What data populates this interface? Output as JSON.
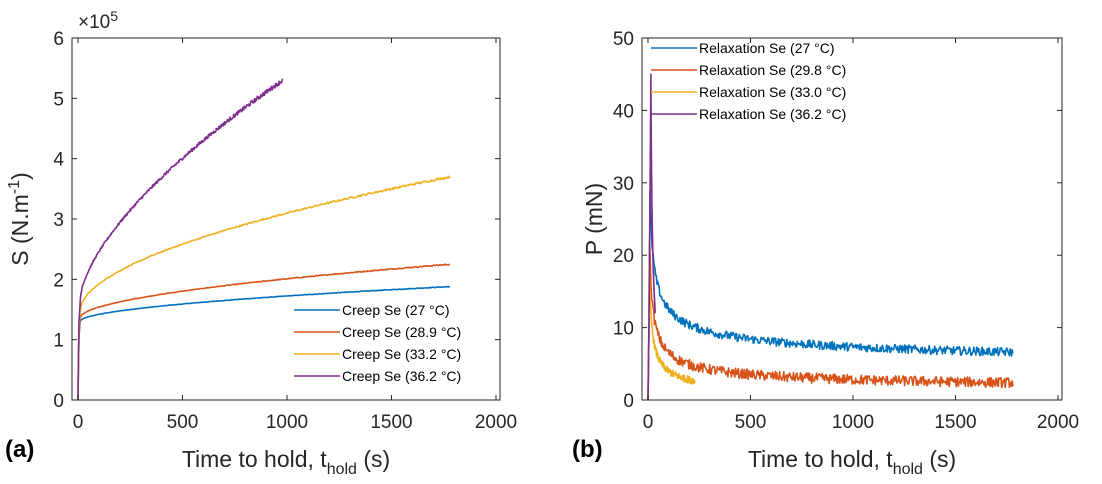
{
  "chart_data": [
    {
      "type": "line",
      "panel_label": "(a)",
      "xlabel_main": "Time to hold, t",
      "xlabel_sub": "hold",
      "xlabel_unit": " (s)",
      "ylabel_main": "S (N.m",
      "ylabel_sup": "-1",
      "ylabel_end": ")",
      "exponent_base": "×10",
      "exponent_power": "5",
      "xlim": [
        0,
        2000
      ],
      "ylim": [
        0,
        6
      ],
      "xticks": [
        "0",
        "500",
        "1000",
        "1500",
        "2000"
      ],
      "yticks": [
        "0",
        "1",
        "2",
        "3",
        "4",
        "5",
        "6"
      ],
      "grid": false,
      "legend_position": "bottom-right",
      "series": [
        {
          "name": "Creep Se (27 °C)",
          "color": "#0072BD",
          "t_end": 1780,
          "y_end": 1.88,
          "a": 0.15,
          "x0": 12,
          "p": 0.55,
          "noise": 0.004,
          "x": [
            0,
            5,
            10,
            12,
            100,
            500,
            1000,
            1500,
            1780
          ],
          "y": [
            0,
            1.05,
            1.3,
            1.31,
            1.44,
            1.65,
            1.76,
            1.84,
            1.88
          ]
        },
        {
          "name": "Creep Se (28.9 °C)",
          "color": "#D95319",
          "t_end": 1780,
          "y_end": 2.25,
          "a": 0.2,
          "x0": 12,
          "p": 0.55,
          "noise": 0.006,
          "x": [
            0,
            5,
            10,
            12,
            100,
            500,
            1000,
            1500,
            1780
          ],
          "y": [
            0,
            1.1,
            1.35,
            1.37,
            1.6,
            1.93,
            2.08,
            2.19,
            2.25
          ]
        },
        {
          "name": "Creep Se (33.2 °C)",
          "color": "#EDB120",
          "t_end": 1780,
          "y_end": 3.7,
          "a": 0.26,
          "x0": 12,
          "p": 0.55,
          "noise": 0.012,
          "x": [
            0,
            5,
            10,
            12,
            100,
            500,
            1000,
            1500,
            1780
          ],
          "y": [
            0,
            1.2,
            1.45,
            1.5,
            2.2,
            2.7,
            3.1,
            3.45,
            3.7
          ]
        },
        {
          "name": "Creep Se (36.2 °C)",
          "color": "#7E2F8E",
          "t_end": 980,
          "y_end": 5.3,
          "a": 0.3,
          "x0": 12,
          "p": 0.65,
          "noise": 0.025,
          "x": [
            0,
            5,
            10,
            12,
            100,
            250,
            500,
            750,
            980
          ],
          "y": [
            0,
            1.3,
            1.6,
            1.7,
            2.95,
            3.55,
            4.3,
            4.85,
            5.3
          ]
        }
      ]
    },
    {
      "type": "line",
      "panel_label": "(b)",
      "xlabel_main": "Time to hold, t",
      "xlabel_sub": "hold",
      "xlabel_unit": " (s)",
      "ylabel": "P (mN)",
      "xlim": [
        0,
        2000
      ],
      "ylim": [
        0,
        50
      ],
      "xticks": [
        "0",
        "500",
        "1000",
        "1500",
        "2000"
      ],
      "yticks": [
        "0",
        "10",
        "20",
        "30",
        "40",
        "50"
      ],
      "grid": false,
      "legend_position": "top-left",
      "series": [
        {
          "name": "Relaxation Se (27 °C)",
          "color": "#0072BD",
          "t_end": 1780,
          "peak_t": 10,
          "peak": 29,
          "y_end": 4.8,
          "q": 0.45,
          "noise": 0.6,
          "x": [
            0,
            10,
            50,
            100,
            250,
            500,
            1000,
            1500,
            1780
          ],
          "y": [
            0,
            29,
            19,
            16,
            12,
            9.5,
            7,
            5.5,
            4.8
          ]
        },
        {
          "name": "Relaxation Se (29.8 °C)",
          "color": "#D95319",
          "t_end": 1780,
          "peak_t": 8,
          "peak": 22,
          "y_end": 1.5,
          "q": 0.55,
          "noise": 0.7,
          "x": [
            0,
            8,
            50,
            100,
            250,
            500,
            1000,
            1500,
            1780
          ],
          "y": [
            0,
            22,
            12,
            9,
            6.5,
            4.5,
            3,
            2,
            1.5
          ]
        },
        {
          "name": "Relaxation Se (33.0 °C)",
          "color": "#EDB120",
          "t_end": 230,
          "peak_t": 6,
          "peak": 19,
          "y_end": 1.2,
          "q": 0.7,
          "noise": 0.5,
          "x": [
            0,
            6,
            25,
            50,
            100,
            150,
            230
          ],
          "y": [
            0,
            19,
            10,
            6,
            3,
            2,
            1.2
          ]
        },
        {
          "name": "Relaxation Se (36.2 °C)",
          "color": "#7E2F8E",
          "t_end": 35,
          "peak_t": 14,
          "peak": 45,
          "y_end": 2.2,
          "q": 1.0,
          "noise": 0.4,
          "x": [
            0,
            5,
            14,
            20,
            25,
            35
          ],
          "y": [
            0,
            8,
            45,
            15,
            6,
            2.2
          ]
        }
      ]
    }
  ]
}
